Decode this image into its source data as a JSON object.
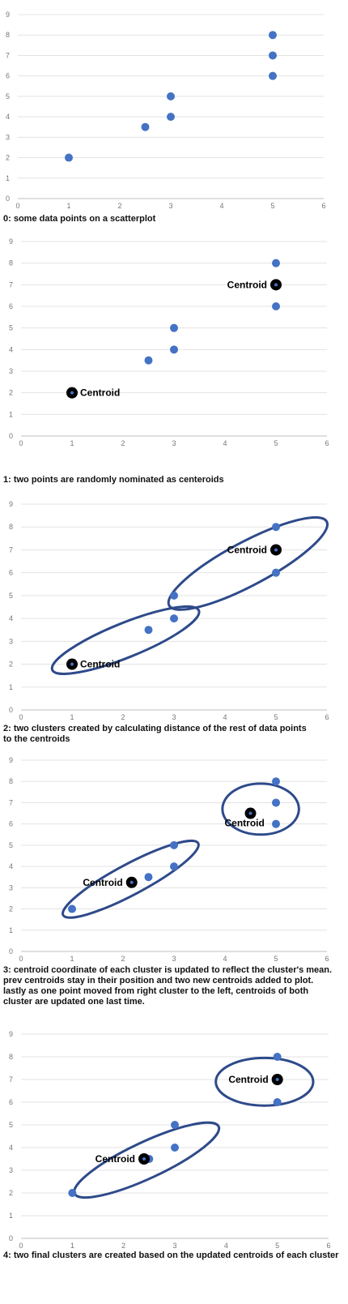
{
  "chart_data": [
    {
      "type": "scatter",
      "caption": [
        "0: some data points on a scatterplot"
      ],
      "xlim": [
        0,
        6
      ],
      "ylim": [
        0,
        9
      ],
      "x_ticks": [
        "0",
        "1",
        "2",
        "3",
        "4",
        "5",
        "6"
      ],
      "y_ticks": [
        "0",
        "1",
        "2",
        "3",
        "4",
        "5",
        "6",
        "7",
        "8",
        "9"
      ],
      "points": [
        [
          1,
          2
        ],
        [
          2.5,
          3.5
        ],
        [
          3,
          4
        ],
        [
          3,
          5
        ],
        [
          5,
          6
        ],
        [
          5,
          7
        ],
        [
          5,
          8
        ]
      ],
      "centroids": [],
      "point_color": "#4472C4",
      "cluster_color": "#2E4A8A"
    },
    {
      "type": "scatter",
      "caption": [
        "1: two points are randomly nominated as centeroids"
      ],
      "xlim": [
        0,
        6
      ],
      "ylim": [
        0,
        9
      ],
      "x_ticks": [
        "0",
        "1",
        "2",
        "3",
        "4",
        "5",
        "6"
      ],
      "y_ticks": [
        "0",
        "1",
        "2",
        "3",
        "4",
        "5",
        "6",
        "7",
        "8",
        "9"
      ],
      "points": [
        [
          2.5,
          3.5
        ],
        [
          3,
          4
        ],
        [
          3,
          5
        ],
        [
          5,
          6
        ],
        [
          5,
          8
        ]
      ],
      "centroids": [
        {
          "x": 1,
          "y": 2,
          "label": "Centroid",
          "label_side": "right"
        },
        {
          "x": 5,
          "y": 7,
          "label": "Centroid",
          "label_side": "left"
        }
      ],
      "point_color": "#4472C4",
      "cluster_color": "#2E4A8A"
    },
    {
      "type": "scatter",
      "caption": [
        "2: two clusters created by calculating distance of  the rest of data points",
        "to the centroids"
      ],
      "xlim": [
        0,
        6
      ],
      "ylim": [
        0,
        9
      ],
      "x_ticks": [
        "0",
        "1",
        "2",
        "3",
        "4",
        "5",
        "6"
      ],
      "y_ticks": [
        "0",
        "1",
        "2",
        "3",
        "4",
        "5",
        "6",
        "7",
        "8",
        "9"
      ],
      "points": [
        [
          2.5,
          3.5
        ],
        [
          3,
          4
        ],
        [
          3,
          5
        ],
        [
          5,
          6
        ],
        [
          5,
          8
        ]
      ],
      "centroids": [
        {
          "x": 1,
          "y": 2,
          "label": "Centroid",
          "label_side": "right"
        },
        {
          "x": 5,
          "y": 7,
          "label": "Centroid",
          "label_side": "left"
        }
      ],
      "clusters": [
        {
          "cx": 2.05,
          "cy": 3.05,
          "rx": 1.55,
          "ry": 0.75,
          "angle": -22
        },
        {
          "cx": 4.45,
          "cy": 6.4,
          "rx": 1.75,
          "ry": 0.95,
          "angle": -28
        }
      ],
      "point_color": "#4472C4",
      "cluster_color": "#2E4A8A"
    },
    {
      "type": "scatter",
      "caption": [
        "3: centroid coordinate of each cluster is updated to reflect the cluster's mean.",
        "prev centroids stay in their position and two new centroids added to plot.",
        "lastly as one point moved from right cluster to the left, centroids of both",
        "cluster are updated one last time."
      ],
      "xlim": [
        0,
        6
      ],
      "ylim": [
        0,
        9
      ],
      "x_ticks": [
        "0",
        "1",
        "2",
        "3",
        "4",
        "5",
        "6"
      ],
      "y_ticks": [
        "0",
        "1",
        "2",
        "3",
        "4",
        "5",
        "6",
        "7",
        "8",
        "9"
      ],
      "points": [
        [
          1,
          2
        ],
        [
          2.5,
          3.5
        ],
        [
          3,
          4
        ],
        [
          3,
          5
        ],
        [
          5,
          6
        ],
        [
          5,
          7
        ],
        [
          5,
          8
        ]
      ],
      "centroids": [
        {
          "x": 2.17,
          "y": 3.25,
          "label": "Centroid",
          "label_side": "left"
        },
        {
          "x": 4.5,
          "y": 6.5,
          "label": "Centroid",
          "label_side": "below-right"
        }
      ],
      "clusters": [
        {
          "cx": 2.15,
          "cy": 3.4,
          "rx": 1.5,
          "ry": 0.72,
          "angle": -28
        },
        {
          "cx": 4.7,
          "cy": 6.7,
          "rx": 0.75,
          "ry": 1.2,
          "angle": 0
        }
      ],
      "point_color": "#4472C4",
      "cluster_color": "#2E4A8A"
    },
    {
      "type": "scatter",
      "caption": [
        "4: two final clusters are created based on the updated centroids of each cluster"
      ],
      "xlim": [
        0,
        6
      ],
      "ylim": [
        0,
        9
      ],
      "x_ticks": [
        "0",
        "1",
        "2",
        "3",
        "4",
        "5",
        "6"
      ],
      "y_ticks": [
        "0",
        "1",
        "2",
        "3",
        "4",
        "5",
        "6",
        "7",
        "8",
        "9"
      ],
      "points": [
        [
          1,
          2
        ],
        [
          2.5,
          3.5
        ],
        [
          3,
          4
        ],
        [
          3,
          5
        ],
        [
          5,
          6
        ],
        [
          5,
          8
        ]
      ],
      "centroids": [
        {
          "x": 2.4,
          "y": 3.5,
          "label": "Centroid",
          "label_side": "left"
        },
        {
          "x": 5,
          "y": 7,
          "label": "Centroid",
          "label_side": "left"
        }
      ],
      "clusters": [
        {
          "cx": 2.45,
          "cy": 3.45,
          "rx": 1.55,
          "ry": 0.8,
          "angle": -25
        },
        {
          "cx": 4.75,
          "cy": 6.9,
          "rx": 0.95,
          "ry": 1.05,
          "angle": 0
        }
      ],
      "point_color": "#4472C4",
      "cluster_color": "#2E4A8A"
    }
  ]
}
